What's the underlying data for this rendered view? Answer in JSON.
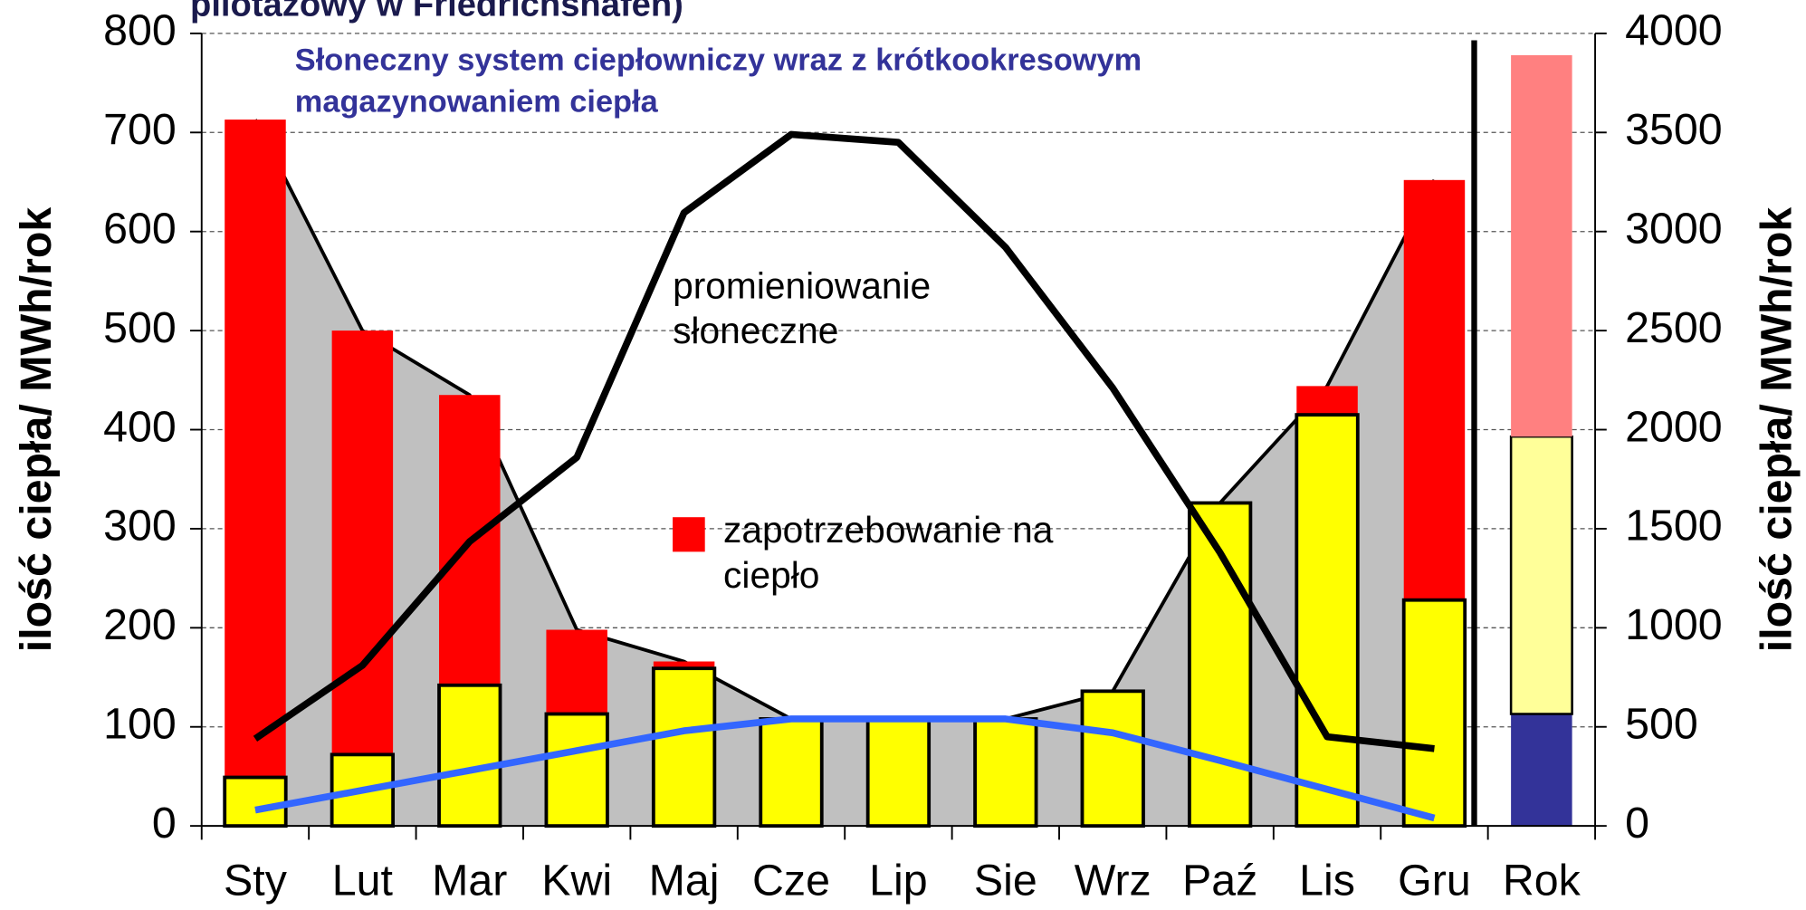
{
  "chart_data": {
    "type": "bar",
    "title": "pilotażowy w Friedrichshafen)",
    "subtitle": "Słoneczny system ciepłowniczy wraz z krótkookresowym magazynowaniem ciepła",
    "y_label": "ilość ciepła/ MWh/rok",
    "y2_label": "ilość ciepła/ MWh/rok",
    "categories": [
      "Sty",
      "Lut",
      "Mar",
      "Kwi",
      "Maj",
      "Cze",
      "Lip",
      "Sie",
      "Wrz",
      "Paź",
      "Lis",
      "Gru",
      "Rok"
    ],
    "ylim": [
      0,
      800
    ],
    "yticks": [
      0,
      100,
      200,
      300,
      400,
      500,
      600,
      700,
      800
    ],
    "y2lim": [
      0,
      4000
    ],
    "y2ticks": [
      0,
      500,
      1000,
      1500,
      2000,
      2500,
      3000,
      3500,
      4000
    ],
    "grid": true,
    "area_color": "#c0c0c0",
    "series": [
      {
        "name": "zapotrzebowanie na ciepło",
        "type": "bar",
        "color": "#ff0000",
        "values": [
          713,
          500,
          435,
          198,
          166,
          108,
          108,
          108,
          136,
          326,
          444,
          652,
          null
        ]
      },
      {
        "type": "bar",
        "color": "#ffff00",
        "values": [
          49,
          72,
          142,
          113,
          159,
          108,
          108,
          108,
          136,
          326,
          415,
          228,
          null
        ]
      },
      {
        "name": "promieniowanie słoneczne",
        "type": "line",
        "color": "#000000",
        "values": [
          88,
          162,
          287,
          372,
          619,
          698,
          690,
          584,
          442,
          276,
          90,
          78,
          null
        ]
      },
      {
        "type": "line",
        "color": "#3366ff",
        "values": [
          16,
          36,
          56,
          76,
          96,
          108,
          108,
          108,
          94,
          66,
          37,
          8,
          null
        ]
      },
      {
        "type": "stacked_bar",
        "axis": "y2",
        "color": "#333399",
        "values": [
          null,
          null,
          null,
          null,
          null,
          null,
          null,
          null,
          null,
          null,
          null,
          null,
          565
        ]
      },
      {
        "type": "stacked_bar",
        "axis": "y2",
        "color": "#ffff99",
        "values": [
          null,
          null,
          null,
          null,
          null,
          null,
          null,
          null,
          null,
          null,
          null,
          null,
          1400
        ]
      },
      {
        "type": "stacked_bar",
        "axis": "y2",
        "color": "#ff8080",
        "values": [
          null,
          null,
          null,
          null,
          null,
          null,
          null,
          null,
          null,
          null,
          null,
          null,
          1925
        ]
      }
    ]
  }
}
